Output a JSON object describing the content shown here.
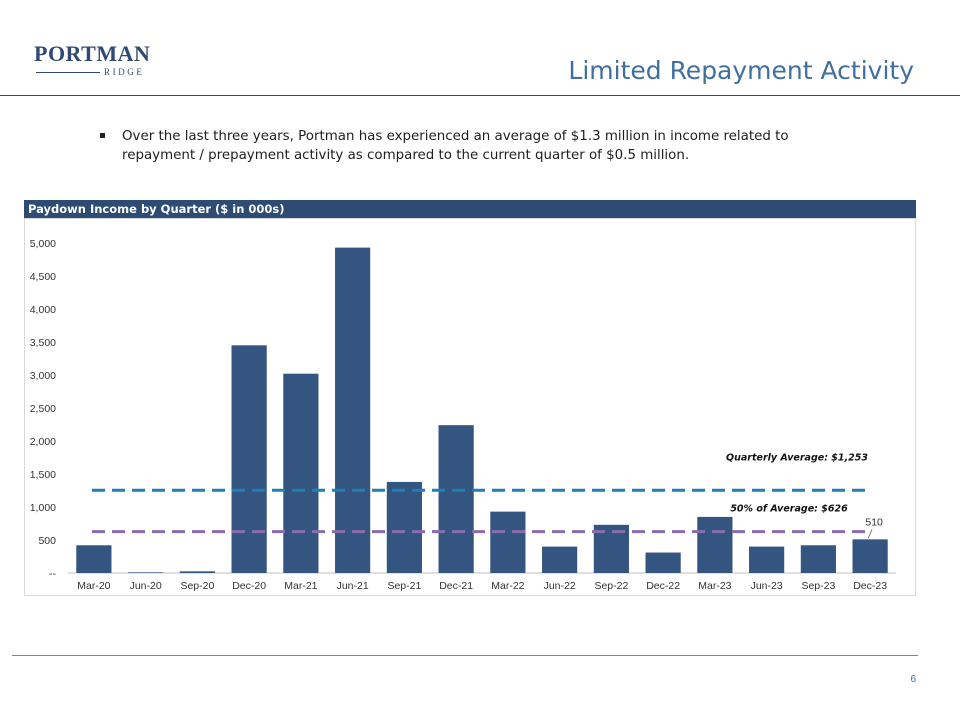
{
  "logo": {
    "main": "PORTMAN",
    "sub": "RIDGE"
  },
  "slide": {
    "title": "Limited Repayment Activity",
    "bullet": "Over the last three years, Portman has experienced an average of $1.3 million in income related to repayment / prepayment activity as compared to the current quarter of $0.5 million.",
    "page_number": "6"
  },
  "colors": {
    "bar": "#34557f",
    "header": "#2e4b74",
    "title_text": "#3f6f9e",
    "average_line": "#1f7fb8",
    "half_average_line": "#8b6bb0"
  },
  "chart_data": {
    "type": "bar",
    "title": "Paydown Income by Quarter ($ in 000s)",
    "categories": [
      "Mar-20",
      "Jun-20",
      "Sep-20",
      "Dec-20",
      "Mar-21",
      "Jun-21",
      "Sep-21",
      "Dec-21",
      "Mar-22",
      "Jun-22",
      "Sep-22",
      "Dec-22",
      "Mar-23",
      "Jun-23",
      "Sep-23",
      "Dec-23"
    ],
    "values": [
      420,
      10,
      25,
      3450,
      3020,
      4930,
      1380,
      2240,
      930,
      400,
      730,
      310,
      850,
      400,
      420,
      510
    ],
    "ylim": [
      0,
      5000
    ],
    "yticks": [
      0,
      500,
      1000,
      1500,
      2000,
      2500,
      3000,
      3500,
      4000,
      4500,
      5000
    ],
    "ytick_labels": [
      "--",
      "500",
      "1,000",
      "1,500",
      "2,000",
      "2,500",
      "3,000",
      "3,500",
      "4,000",
      "4,500",
      "5,000"
    ],
    "grid": false,
    "reference_lines": [
      {
        "label": "Quarterly Average: $1,253",
        "value": 1253,
        "style": "dashed"
      },
      {
        "label": "50% of Average: $626",
        "value": 626,
        "style": "dashed"
      }
    ],
    "data_labels": [
      {
        "category": "Dec-23",
        "text": "510"
      }
    ]
  }
}
